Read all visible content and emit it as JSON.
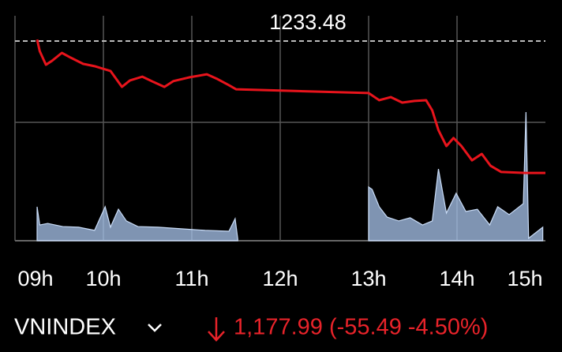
{
  "chart_data": {
    "type": "line",
    "reference_line": {
      "value": 1233.48
    },
    "xlim": [
      9,
      15
    ],
    "xticks": [
      {
        "value": 9,
        "label": "09h"
      },
      {
        "value": 10,
        "label": "10h"
      },
      {
        "value": 11,
        "label": "11h"
      },
      {
        "value": 12,
        "label": "12h"
      },
      {
        "value": 13,
        "label": "13h"
      },
      {
        "value": 14,
        "label": "14h"
      },
      {
        "value": 15,
        "label": "15h"
      }
    ],
    "ylim": [
      1149.5,
      1244.1
    ],
    "y2lim": [
      0,
      100
    ],
    "series": [
      {
        "name": "VNINDEX",
        "color": "#e8141c",
        "x": [
          9.25,
          9.28,
          9.35,
          9.42,
          9.53,
          9.63,
          9.77,
          9.9,
          10.08,
          10.21,
          10.3,
          10.44,
          10.57,
          10.69,
          10.79,
          10.97,
          11.17,
          11.29,
          11.42,
          11.5,
          13.0,
          13.12,
          13.25,
          13.38,
          13.52,
          13.65,
          13.72,
          13.79,
          13.88,
          13.96,
          14.05,
          14.17,
          14.28,
          14.38,
          14.5,
          14.77,
          15.0
        ],
        "values": [
          1234.1,
          1229.2,
          1223.5,
          1225.2,
          1228.5,
          1226.5,
          1223.9,
          1222.9,
          1220.9,
          1214.2,
          1216.9,
          1218.5,
          1216.2,
          1214.2,
          1216.6,
          1218.2,
          1219.5,
          1217.5,
          1214.9,
          1213.2,
          1211.6,
          1208.6,
          1209.9,
          1207.6,
          1208.3,
          1208.6,
          1204.3,
          1196.0,
          1189.3,
          1192.7,
          1189.3,
          1183.3,
          1186.0,
          1181.0,
          1178.4,
          1178.0,
          1177.99
        ]
      },
      {
        "type": "area",
        "axis": "y2",
        "color": "#a9c5ee",
        "x": [
          9.25,
          9.28,
          9.37,
          9.54,
          9.72,
          9.9,
          10.02,
          10.08,
          10.17,
          10.26,
          10.39,
          10.62,
          10.88,
          11.15,
          11.42,
          11.49,
          11.52,
          12.0,
          13.0,
          13.04,
          13.12,
          13.21,
          13.34,
          13.47,
          13.61,
          13.72,
          13.79,
          13.88,
          13.99,
          14.1,
          14.23,
          14.37,
          14.46,
          14.59,
          14.75,
          14.78,
          14.81,
          14.97
        ],
        "values": [
          15.1,
          7.0,
          7.7,
          6.3,
          6.0,
          4.6,
          15.1,
          6.0,
          14.0,
          8.8,
          6.3,
          6.0,
          5.3,
          4.6,
          4.2,
          9.8,
          0.7,
          null,
          23.9,
          22.8,
          15.1,
          10.5,
          8.8,
          10.2,
          7.0,
          8.8,
          31.9,
          12.3,
          21.1,
          13.0,
          14.0,
          7.0,
          15.1,
          11.6,
          16.5,
          57.2,
          1.1,
          6.0
        ]
      }
    ]
  },
  "footer": {
    "symbol": "VNINDEX",
    "quote": "1,177.99 (-55.49 -4.50%)"
  }
}
